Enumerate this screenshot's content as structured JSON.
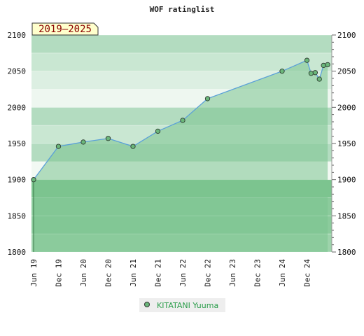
{
  "chart_data": {
    "type": "area",
    "title": "WOF ratinglist",
    "range_label": "2019–2025",
    "x_tick_labels": [
      "Jun 19",
      "Dec 19",
      "Jun 20",
      "Dec 20",
      "Jun 21",
      "Dec 21",
      "Jun 22",
      "Dec 22",
      "Jun 23",
      "Dec 23",
      "Jun 24",
      "Dec 24"
    ],
    "y_ticks": [
      1800,
      1850,
      1900,
      1950,
      2000,
      2050,
      2100
    ],
    "ylim": [
      1800,
      2100
    ],
    "x_range": [
      "2019-06",
      "2025-06"
    ],
    "legend_position": "bottom-center",
    "series": [
      {
        "name": "KITATANI Yuuma",
        "color": "#5aa0d8",
        "fill": "#7cc48f",
        "marker_color": "#6bb77b",
        "points": [
          {
            "x": "2019-06",
            "y": 1900
          },
          {
            "x": "2019-12",
            "y": 1946
          },
          {
            "x": "2020-06",
            "y": 1952
          },
          {
            "x": "2020-12",
            "y": 1957
          },
          {
            "x": "2021-06",
            "y": 1946
          },
          {
            "x": "2021-12",
            "y": 1967
          },
          {
            "x": "2022-06",
            "y": 1982
          },
          {
            "x": "2022-12",
            "y": 2012
          },
          {
            "x": "2024-06",
            "y": 2050
          },
          {
            "x": "2024-12",
            "y": 2065
          },
          {
            "x": "2025-01",
            "y": 2047
          },
          {
            "x": "2025-02",
            "y": 2048
          },
          {
            "x": "2025-03",
            "y": 2039
          },
          {
            "x": "2025-04",
            "y": 2058
          },
          {
            "x": "2025-05",
            "y": 2059
          }
        ]
      }
    ]
  }
}
